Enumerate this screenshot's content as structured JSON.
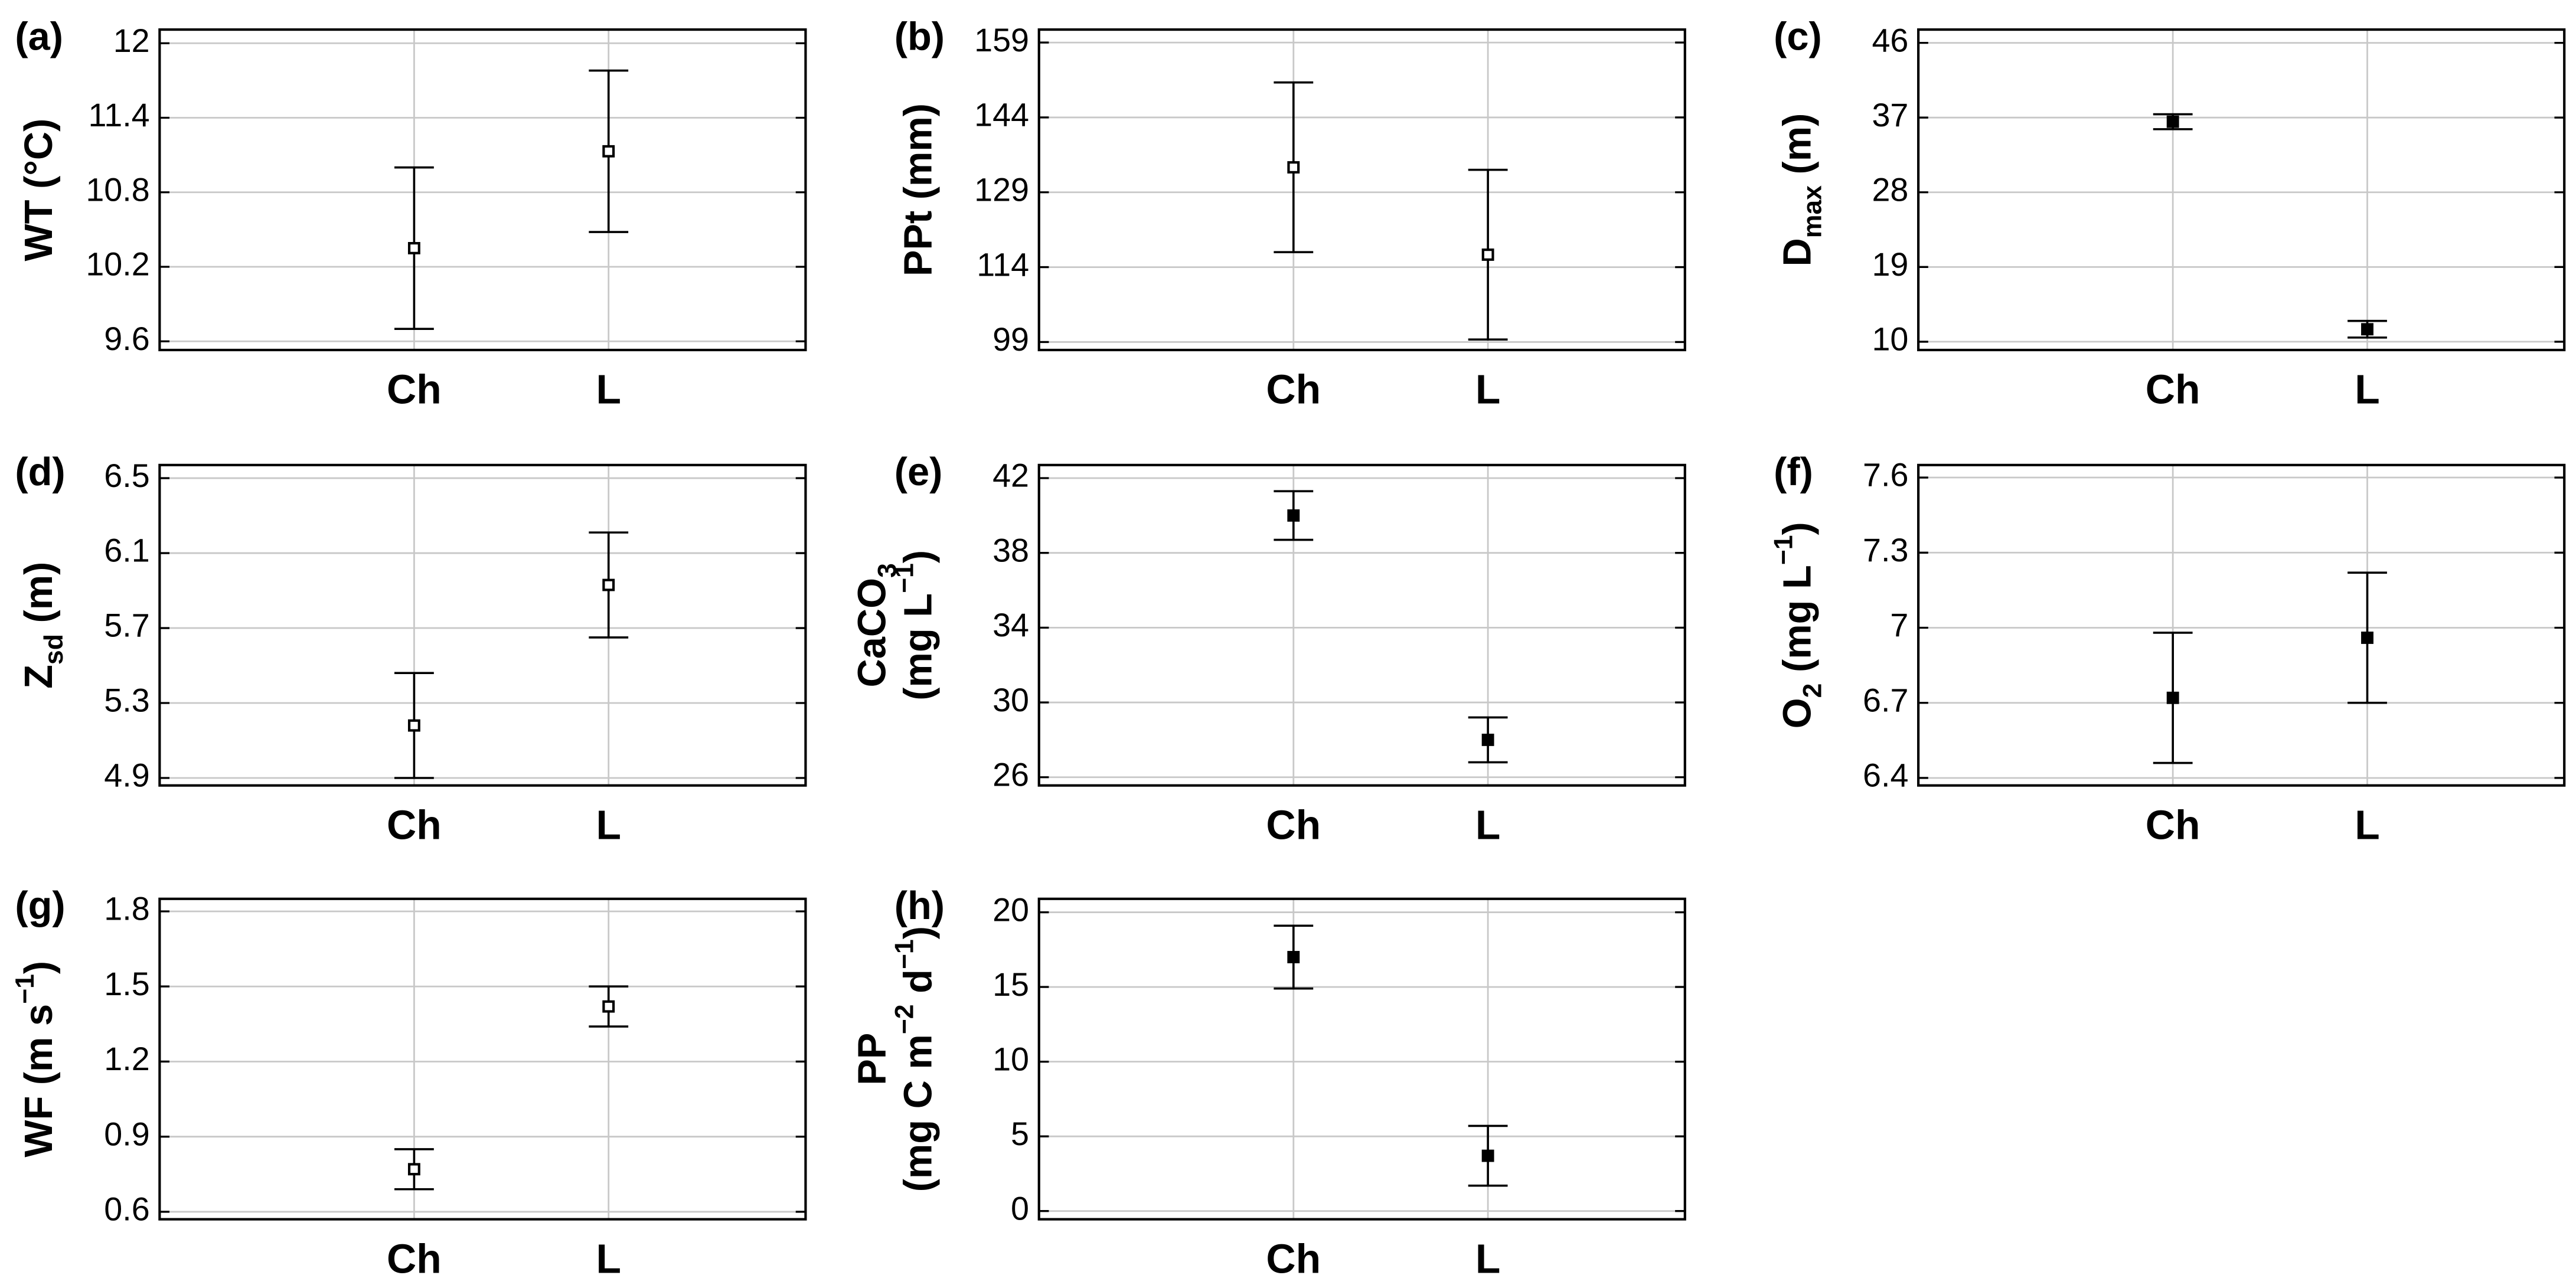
{
  "chart_data": [
    {
      "type": "errorbar",
      "label": "(a)",
      "ylabel": [
        [
          {
            "text": "WT (°C)"
          }
        ]
      ],
      "categories": [
        "Ch",
        "L"
      ],
      "values": [
        10.35,
        11.13
      ],
      "errors": [
        0.65,
        0.65
      ],
      "marker": "open-square",
      "ylim": [
        9.53,
        12.11
      ],
      "yticks": [
        9.6,
        10.2,
        10.8,
        11.4,
        12
      ],
      "grid": true
    },
    {
      "type": "errorbar",
      "label": "(b)",
      "ylabel": [
        [
          {
            "text": "PPt (mm)"
          }
        ]
      ],
      "categories": [
        "Ch",
        "L"
      ],
      "values": [
        134,
        116.5
      ],
      "errors": [
        17,
        17
      ],
      "marker": "open-square",
      "ylim": [
        97.4,
        161.6
      ],
      "yticks": [
        99,
        114,
        129,
        144,
        159
      ],
      "grid": true
    },
    {
      "type": "errorbar",
      "label": "(c)",
      "ylabel": [
        [
          {
            "text": "D"
          },
          {
            "text": "max",
            "shift": "sub"
          },
          {
            "text": " (m)"
          }
        ]
      ],
      "categories": [
        "Ch",
        "L"
      ],
      "values": [
        36.5,
        11.5
      ],
      "errors": [
        0.9,
        1.0
      ],
      "marker": "square",
      "ylim": [
        9.0,
        47.6
      ],
      "yticks": [
        10,
        19,
        28,
        37,
        46
      ],
      "grid": true
    },
    {
      "type": "errorbar",
      "label": "(d)",
      "ylabel": [
        [
          {
            "text": "Z"
          },
          {
            "text": "sd",
            "shift": "sub"
          },
          {
            "text": " (m)"
          }
        ]
      ],
      "categories": [
        "Ch",
        "L"
      ],
      "values": [
        5.18,
        5.93
      ],
      "errors": [
        0.28,
        0.28
      ],
      "marker": "open-square",
      "ylim": [
        4.86,
        6.57
      ],
      "yticks": [
        4.9,
        5.3,
        5.7,
        6.1,
        6.5
      ],
      "grid": true
    },
    {
      "type": "errorbar",
      "label": "(e)",
      "ylabel": [
        [
          {
            "text": "CaCO"
          },
          {
            "text": "3",
            "shift": "sub"
          }
        ],
        [
          {
            "text": "(mg L"
          },
          {
            "text": "−1",
            "shift": "super"
          },
          {
            "text": ")"
          }
        ]
      ],
      "categories": [
        "Ch",
        "L"
      ],
      "values": [
        40,
        28
      ],
      "errors": [
        1.3,
        1.2
      ],
      "marker": "square",
      "ylim": [
        25.56,
        42.7
      ],
      "yticks": [
        26,
        30,
        34,
        38,
        42
      ],
      "grid": true
    },
    {
      "type": "errorbar",
      "label": "(f)",
      "ylabel": [
        [
          {
            "text": "O"
          },
          {
            "text": "2",
            "shift": "sub"
          },
          {
            "text": " (mg L"
          },
          {
            "text": "−1",
            "shift": "super"
          },
          {
            "text": ")"
          }
        ]
      ],
      "categories": [
        "Ch",
        "L"
      ],
      "values": [
        6.72,
        6.96
      ],
      "errors": [
        0.26,
        0.26
      ],
      "marker": "square",
      "ylim": [
        6.37,
        7.65
      ],
      "yticks": [
        6.4,
        6.7,
        7,
        7.3,
        7.6
      ],
      "grid": true
    },
    {
      "type": "errorbar",
      "label": "(g)",
      "ylabel": [
        [
          {
            "text": "WF (m s"
          },
          {
            "text": "−1",
            "shift": "super"
          },
          {
            "text": ")"
          }
        ]
      ],
      "categories": [
        "Ch",
        "L"
      ],
      "values": [
        0.77,
        1.42
      ],
      "errors": [
        0.08,
        0.08
      ],
      "marker": "open-square",
      "ylim": [
        0.57,
        1.85
      ],
      "yticks": [
        0.6,
        0.9,
        1.2,
        1.5,
        1.8
      ],
      "grid": true
    },
    {
      "type": "errorbar",
      "label": "(h)",
      "ylabel": [
        [
          {
            "text": "PP"
          }
        ],
        [
          {
            "text": "(mg C m"
          },
          {
            "text": "−2",
            "shift": "super"
          },
          {
            "text": " d"
          },
          {
            "text": "−1",
            "shift": "super"
          },
          {
            "text": ")"
          }
        ]
      ],
      "categories": [
        "Ch",
        "L"
      ],
      "values": [
        17,
        3.7
      ],
      "errors": [
        2.1,
        2.0
      ],
      "marker": "square",
      "ylim": [
        -0.55,
        20.9
      ],
      "yticks": [
        0,
        5,
        10,
        15,
        20
      ],
      "grid": true
    }
  ]
}
